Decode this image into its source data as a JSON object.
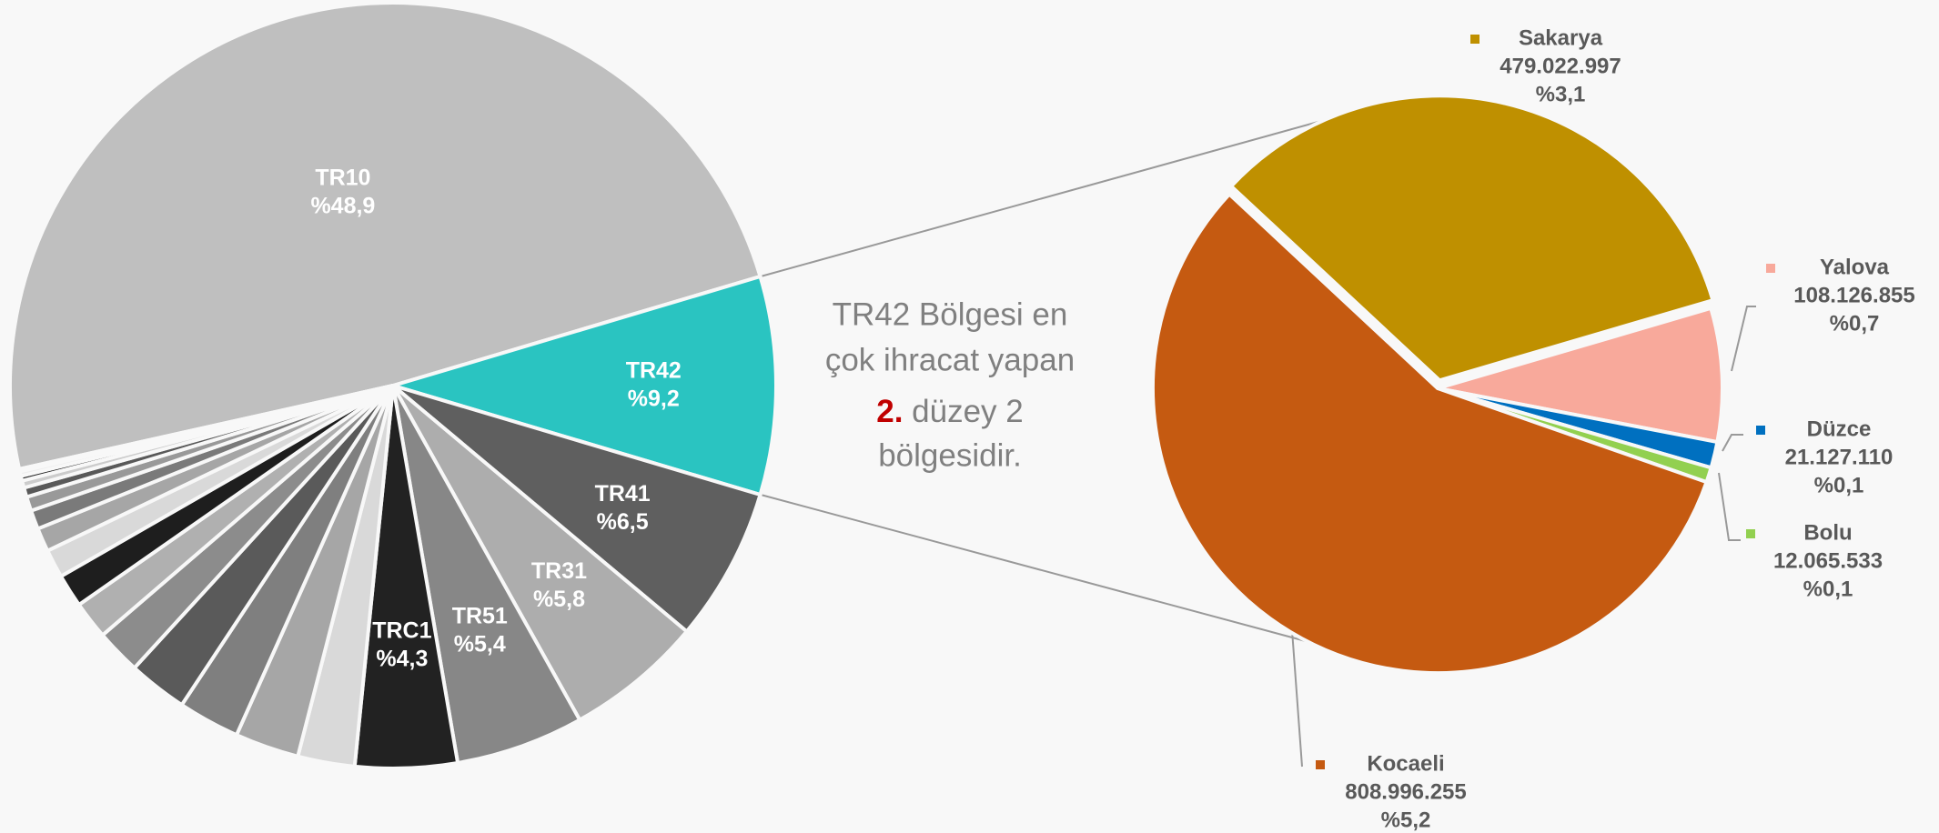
{
  "chart_data": [
    {
      "type": "pie",
      "categories": [
        "TR10",
        "TR42",
        "TR41",
        "TR31",
        "TR51",
        "TRC1",
        null,
        null,
        null,
        null,
        null,
        null,
        null,
        null,
        null,
        null,
        null,
        null,
        null,
        null,
        null,
        null
      ],
      "values": [
        48.9,
        9.2,
        6.5,
        5.8,
        5.4,
        4.3,
        2.4,
        2.7,
        2.6,
        2.5,
        1.9,
        1.6,
        1.4,
        1.2,
        1.0,
        0.8,
        0.6,
        0.4,
        0.3,
        0.2,
        0.2,
        0.1
      ],
      "value_labels": [
        "%48,9",
        "%9,2",
        "%6,5",
        "%5,8",
        "%5,4",
        "%4,3",
        null,
        null,
        null,
        null,
        null,
        null,
        null,
        null,
        null,
        null,
        null,
        null,
        null,
        null,
        null,
        null
      ],
      "colors": [
        "#bfbfbf",
        "#2ac4c1",
        "#5f5f5f",
        "#adadad",
        "#878787",
        "#222222",
        "#d9d9d9",
        "#a6a6a6",
        "#7f7f7f",
        "#5a5a5a",
        "#8c8c8c",
        "#b0b0b0",
        "#1e1e1e",
        "#d9d9d9",
        "#a6a6a6",
        "#7a7a7a",
        "#999999",
        "#595959",
        "#cccccc",
        "#222222",
        "#eeeeee",
        "#888888"
      ]
    },
    {
      "type": "pie",
      "categories": [
        "Sakarya",
        "Yalova",
        "Düzce",
        "Bolu",
        "Kocaeli"
      ],
      "values": [
        479022997,
        108126855,
        21127110,
        12065533,
        808996255
      ],
      "value_labels": [
        "479.022.997",
        "108.126.855",
        "21.127.110",
        "12.065.533",
        "808.996.255"
      ],
      "shares": [
        3.1,
        0.7,
        0.1,
        0.1,
        5.2
      ],
      "share_labels": [
        "%3,1",
        "%0,7",
        "%0,1",
        "%0,1",
        "%5,2"
      ],
      "colors": [
        "#bf9000",
        "#f8a99b",
        "#0070c0",
        "#92d050",
        "#c55a11"
      ]
    }
  ],
  "annotation": {
    "line1": "TR42 Bölgesi en",
    "line2": "çok ihracat yapan",
    "highlight": "2.",
    "line3_rest": " düzey 2",
    "line4": "bölgesidir."
  }
}
